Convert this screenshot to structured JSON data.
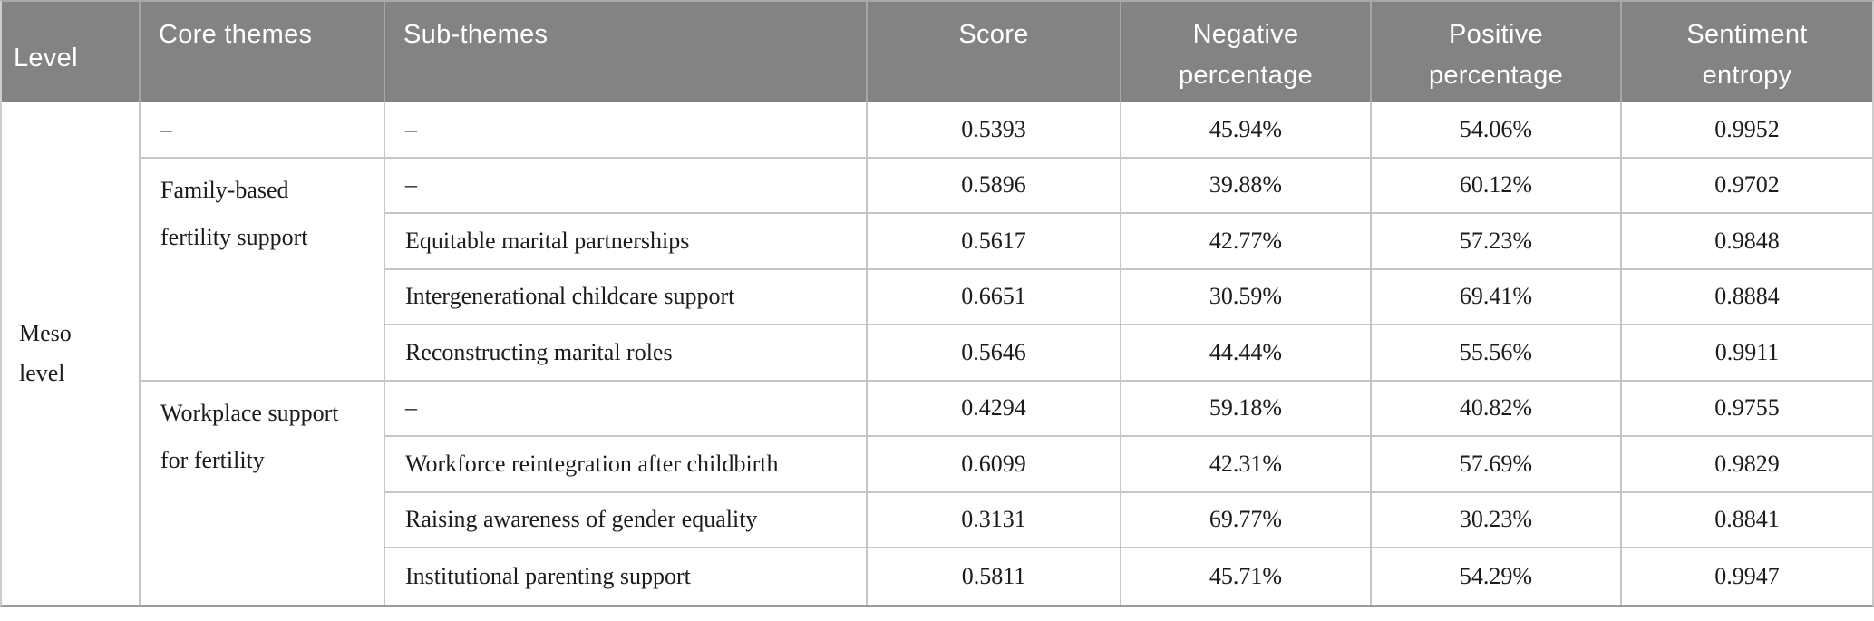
{
  "chart_data": {
    "type": "table",
    "columns": [
      "Level",
      "Core themes",
      "Sub-themes",
      "Score",
      "Negative percentage",
      "Positive percentage",
      "Sentiment entropy"
    ],
    "level": "Meso level",
    "groups": [
      {
        "core_theme": "–",
        "rows": [
          {
            "sub_theme": "–",
            "score": "0.5393",
            "negative": "45.94%",
            "positive": "54.06%",
            "entropy": "0.9952"
          }
        ]
      },
      {
        "core_theme": "Family-based fertility support",
        "rows": [
          {
            "sub_theme": "–",
            "score": "0.5896",
            "negative": "39.88%",
            "positive": "60.12%",
            "entropy": "0.9702"
          },
          {
            "sub_theme": "Equitable marital partnerships",
            "score": "0.5617",
            "negative": "42.77%",
            "positive": "57.23%",
            "entropy": "0.9848"
          },
          {
            "sub_theme": "Intergenerational childcare support",
            "score": "0.6651",
            "negative": "30.59%",
            "positive": "69.41%",
            "entropy": "0.8884"
          },
          {
            "sub_theme": "Reconstructing marital roles",
            "score": "0.5646",
            "negative": "44.44%",
            "positive": "55.56%",
            "entropy": "0.9911"
          }
        ]
      },
      {
        "core_theme": "Workplace support for fertility",
        "rows": [
          {
            "sub_theme": "–",
            "score": "0.4294",
            "negative": "59.18%",
            "positive": "40.82%",
            "entropy": "0.9755"
          },
          {
            "sub_theme": "Workforce reintegration after childbirth",
            "score": "0.6099",
            "negative": "42.31%",
            "positive": "57.69%",
            "entropy": "0.9829"
          },
          {
            "sub_theme": "Raising awareness of gender equality",
            "score": "0.3131",
            "negative": "69.77%",
            "positive": "30.23%",
            "entropy": "0.8841"
          },
          {
            "sub_theme": "Institutional parenting support",
            "score": "0.5811",
            "negative": "45.71%",
            "positive": "54.29%",
            "entropy": "0.9947"
          }
        ]
      }
    ],
    "colors": {
      "header_background": "#838383",
      "header_text": "#ffffff",
      "grid_line": "#c6c6c6",
      "table_bottom_border": "#9b9b9b",
      "body_text": "#1c1c1c"
    },
    "layout": {
      "header_rows": 1,
      "body_rows": 9,
      "grid": "on"
    }
  }
}
